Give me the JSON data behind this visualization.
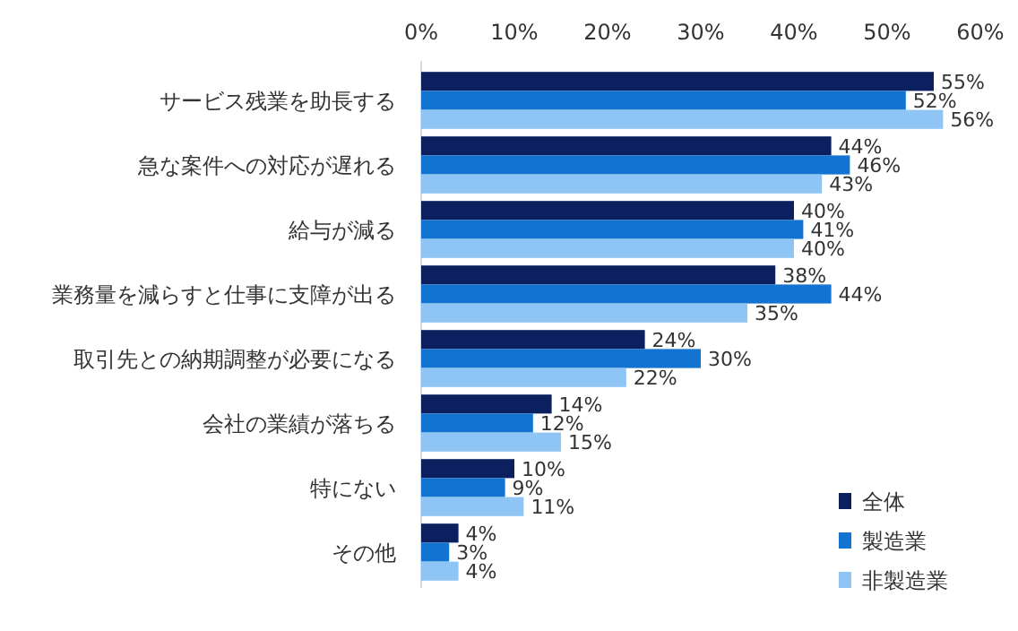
{
  "chart_data": {
    "type": "bar",
    "orientation": "horizontal",
    "categories": [
      "サービス残業を助長する",
      "急な案件への対応が遅れる",
      "給与が減る",
      "業務量を減らすと仕事に支障が出る",
      "取引先との納期調整が必要になる",
      "会社の業績が落ちる",
      "特にない",
      "その他"
    ],
    "series": [
      {
        "name": "全体",
        "color": "#0c1f5e",
        "values": [
          55,
          44,
          40,
          38,
          24,
          14,
          10,
          4
        ],
        "value_labels": [
          "55%",
          "44%",
          "40%",
          "38%",
          "24%",
          "14%",
          "10%",
          "4%"
        ]
      },
      {
        "name": "製造業",
        "color": "#1273d0",
        "values": [
          52,
          46,
          41,
          44,
          30,
          12,
          9,
          3
        ],
        "value_labels": [
          "52%",
          "46%",
          "41%",
          "44%",
          "30%",
          "12%",
          "9%",
          "3%"
        ]
      },
      {
        "name": "非製造業",
        "color": "#8ec5f5",
        "values": [
          56,
          43,
          40,
          35,
          22,
          15,
          11,
          4
        ],
        "value_labels": [
          "56%",
          "43%",
          "40%",
          "35%",
          "22%",
          "15%",
          "11%",
          "4%"
        ]
      }
    ],
    "xlim": [
      0,
      60
    ],
    "xticks": [
      {
        "value": 0,
        "label": "0%"
      },
      {
        "value": 10,
        "label": "10%"
      },
      {
        "value": 20,
        "label": "20%"
      },
      {
        "value": 30,
        "label": "30%"
      },
      {
        "value": 40,
        "label": "40%"
      },
      {
        "value": 50,
        "label": "50%"
      },
      {
        "value": 60,
        "label": "60%"
      }
    ],
    "legend": "bottom right"
  }
}
